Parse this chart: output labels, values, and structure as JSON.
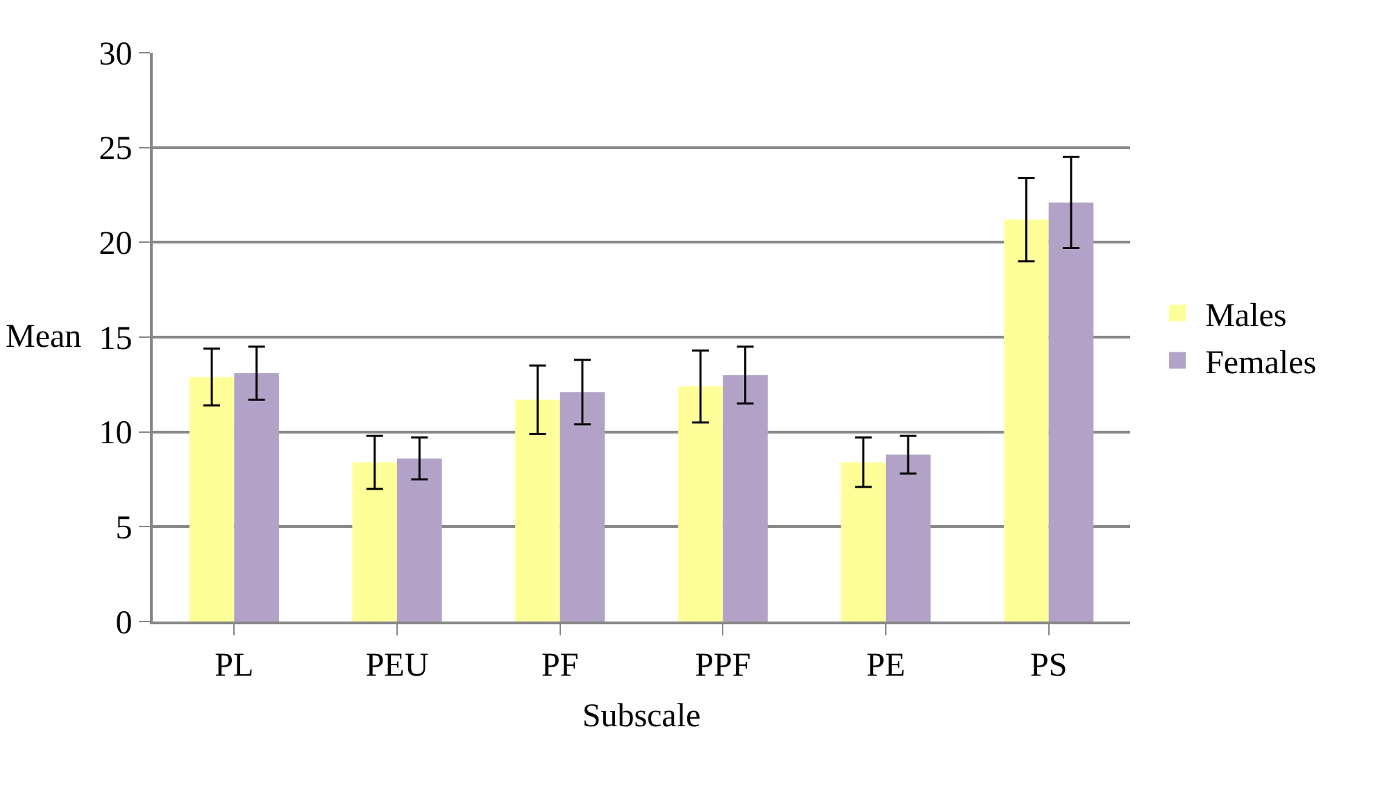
{
  "chart_data": {
    "type": "bar",
    "xlabel": "Subscale",
    "ylabel": "Mean",
    "categories": [
      "PL",
      "PEU",
      "PF",
      "PPF",
      "PE",
      "PS"
    ],
    "series": [
      {
        "name": "Males",
        "color": "#ffff99",
        "values": [
          12.9,
          8.4,
          11.7,
          12.4,
          8.4,
          21.2
        ],
        "errors": [
          1.5,
          1.4,
          1.8,
          1.9,
          1.3,
          2.2
        ]
      },
      {
        "name": "Females",
        "color": "#b2a2c7",
        "values": [
          13.1,
          8.6,
          12.1,
          13.0,
          8.8,
          22.1
        ],
        "errors": [
          1.4,
          1.1,
          1.7,
          1.5,
          1.0,
          2.4
        ]
      }
    ],
    "ylim": [
      0,
      30
    ],
    "yticks": [
      0,
      5,
      10,
      15,
      20,
      25,
      30
    ],
    "grid": "y",
    "legend": "right"
  }
}
